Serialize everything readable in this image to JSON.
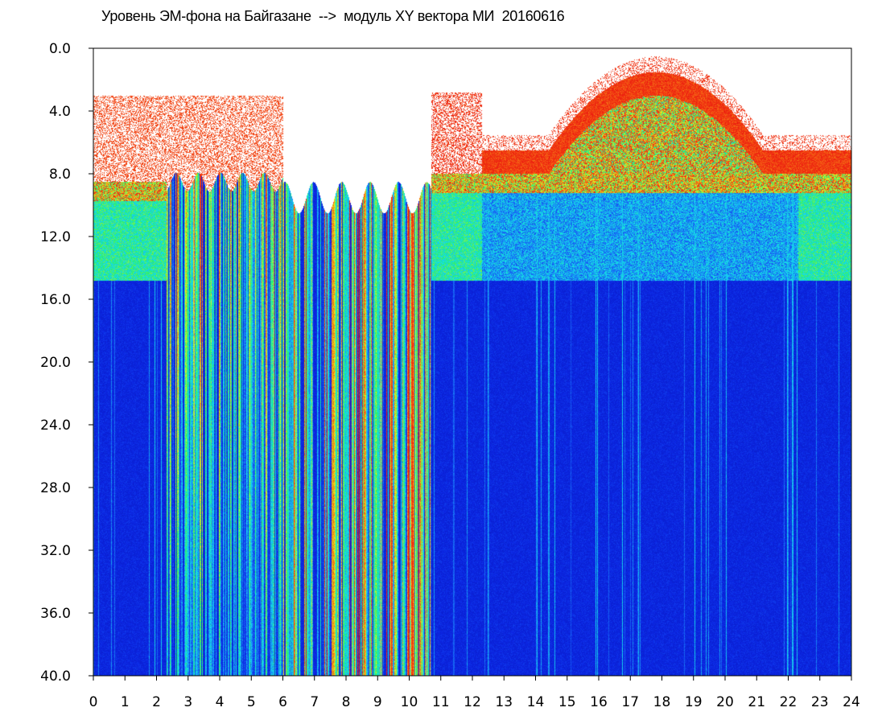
{
  "chart_data": {
    "type": "heatmap",
    "title": "Уровень ЭМ-фона на Байгазане  -->  модуль XY вектора МИ  20160616",
    "xlabel": "",
    "ylabel": "",
    "xlim": [
      0,
      24
    ],
    "ylim": [
      0.0,
      40.0
    ],
    "y_inverted": true,
    "x_ticks": [
      "0",
      "1",
      "2",
      "3",
      "4",
      "5",
      "6",
      "7",
      "8",
      "9",
      "10",
      "11",
      "12",
      "13",
      "14",
      "15",
      "16",
      "17",
      "18",
      "19",
      "20",
      "21",
      "22",
      "23",
      "24"
    ],
    "y_ticks": [
      "0.0",
      "4.0",
      "8.0",
      "12.0",
      "16.0",
      "20.0",
      "24.0",
      "28.0",
      "32.0",
      "36.0",
      "40.0"
    ],
    "grid": false,
    "colorscale": [
      "#0a1fcf",
      "#1e6cf0",
      "#10e0f0",
      "#20f070",
      "#f0f020",
      "#f02010"
    ],
    "regions": [
      {
        "x": [
          0,
          2.3
        ],
        "noise_floor_y": 8.5,
        "strong_band_y": [
          8.5,
          15.0
        ],
        "sparse_top_y": [
          3.0,
          8.5
        ]
      },
      {
        "x": [
          2.3,
          6.0
        ],
        "noise_floor_y": 8.5,
        "broadband_stripes": true
      },
      {
        "x": [
          6.0,
          10.7
        ],
        "noise_floor_y": 9.5,
        "broadband_stripes": true
      },
      {
        "x": [
          10.7,
          12.3
        ],
        "noise_floor_y": 8.0,
        "strong_band_y": [
          8.0,
          14.5
        ]
      },
      {
        "x": [
          12.3,
          24
        ],
        "noise_floor_y": 6.5,
        "strong_band_y": [
          8.0,
          14.5
        ],
        "dome_peak": {
          "x": 17.8,
          "y": 1.5
        }
      }
    ]
  }
}
